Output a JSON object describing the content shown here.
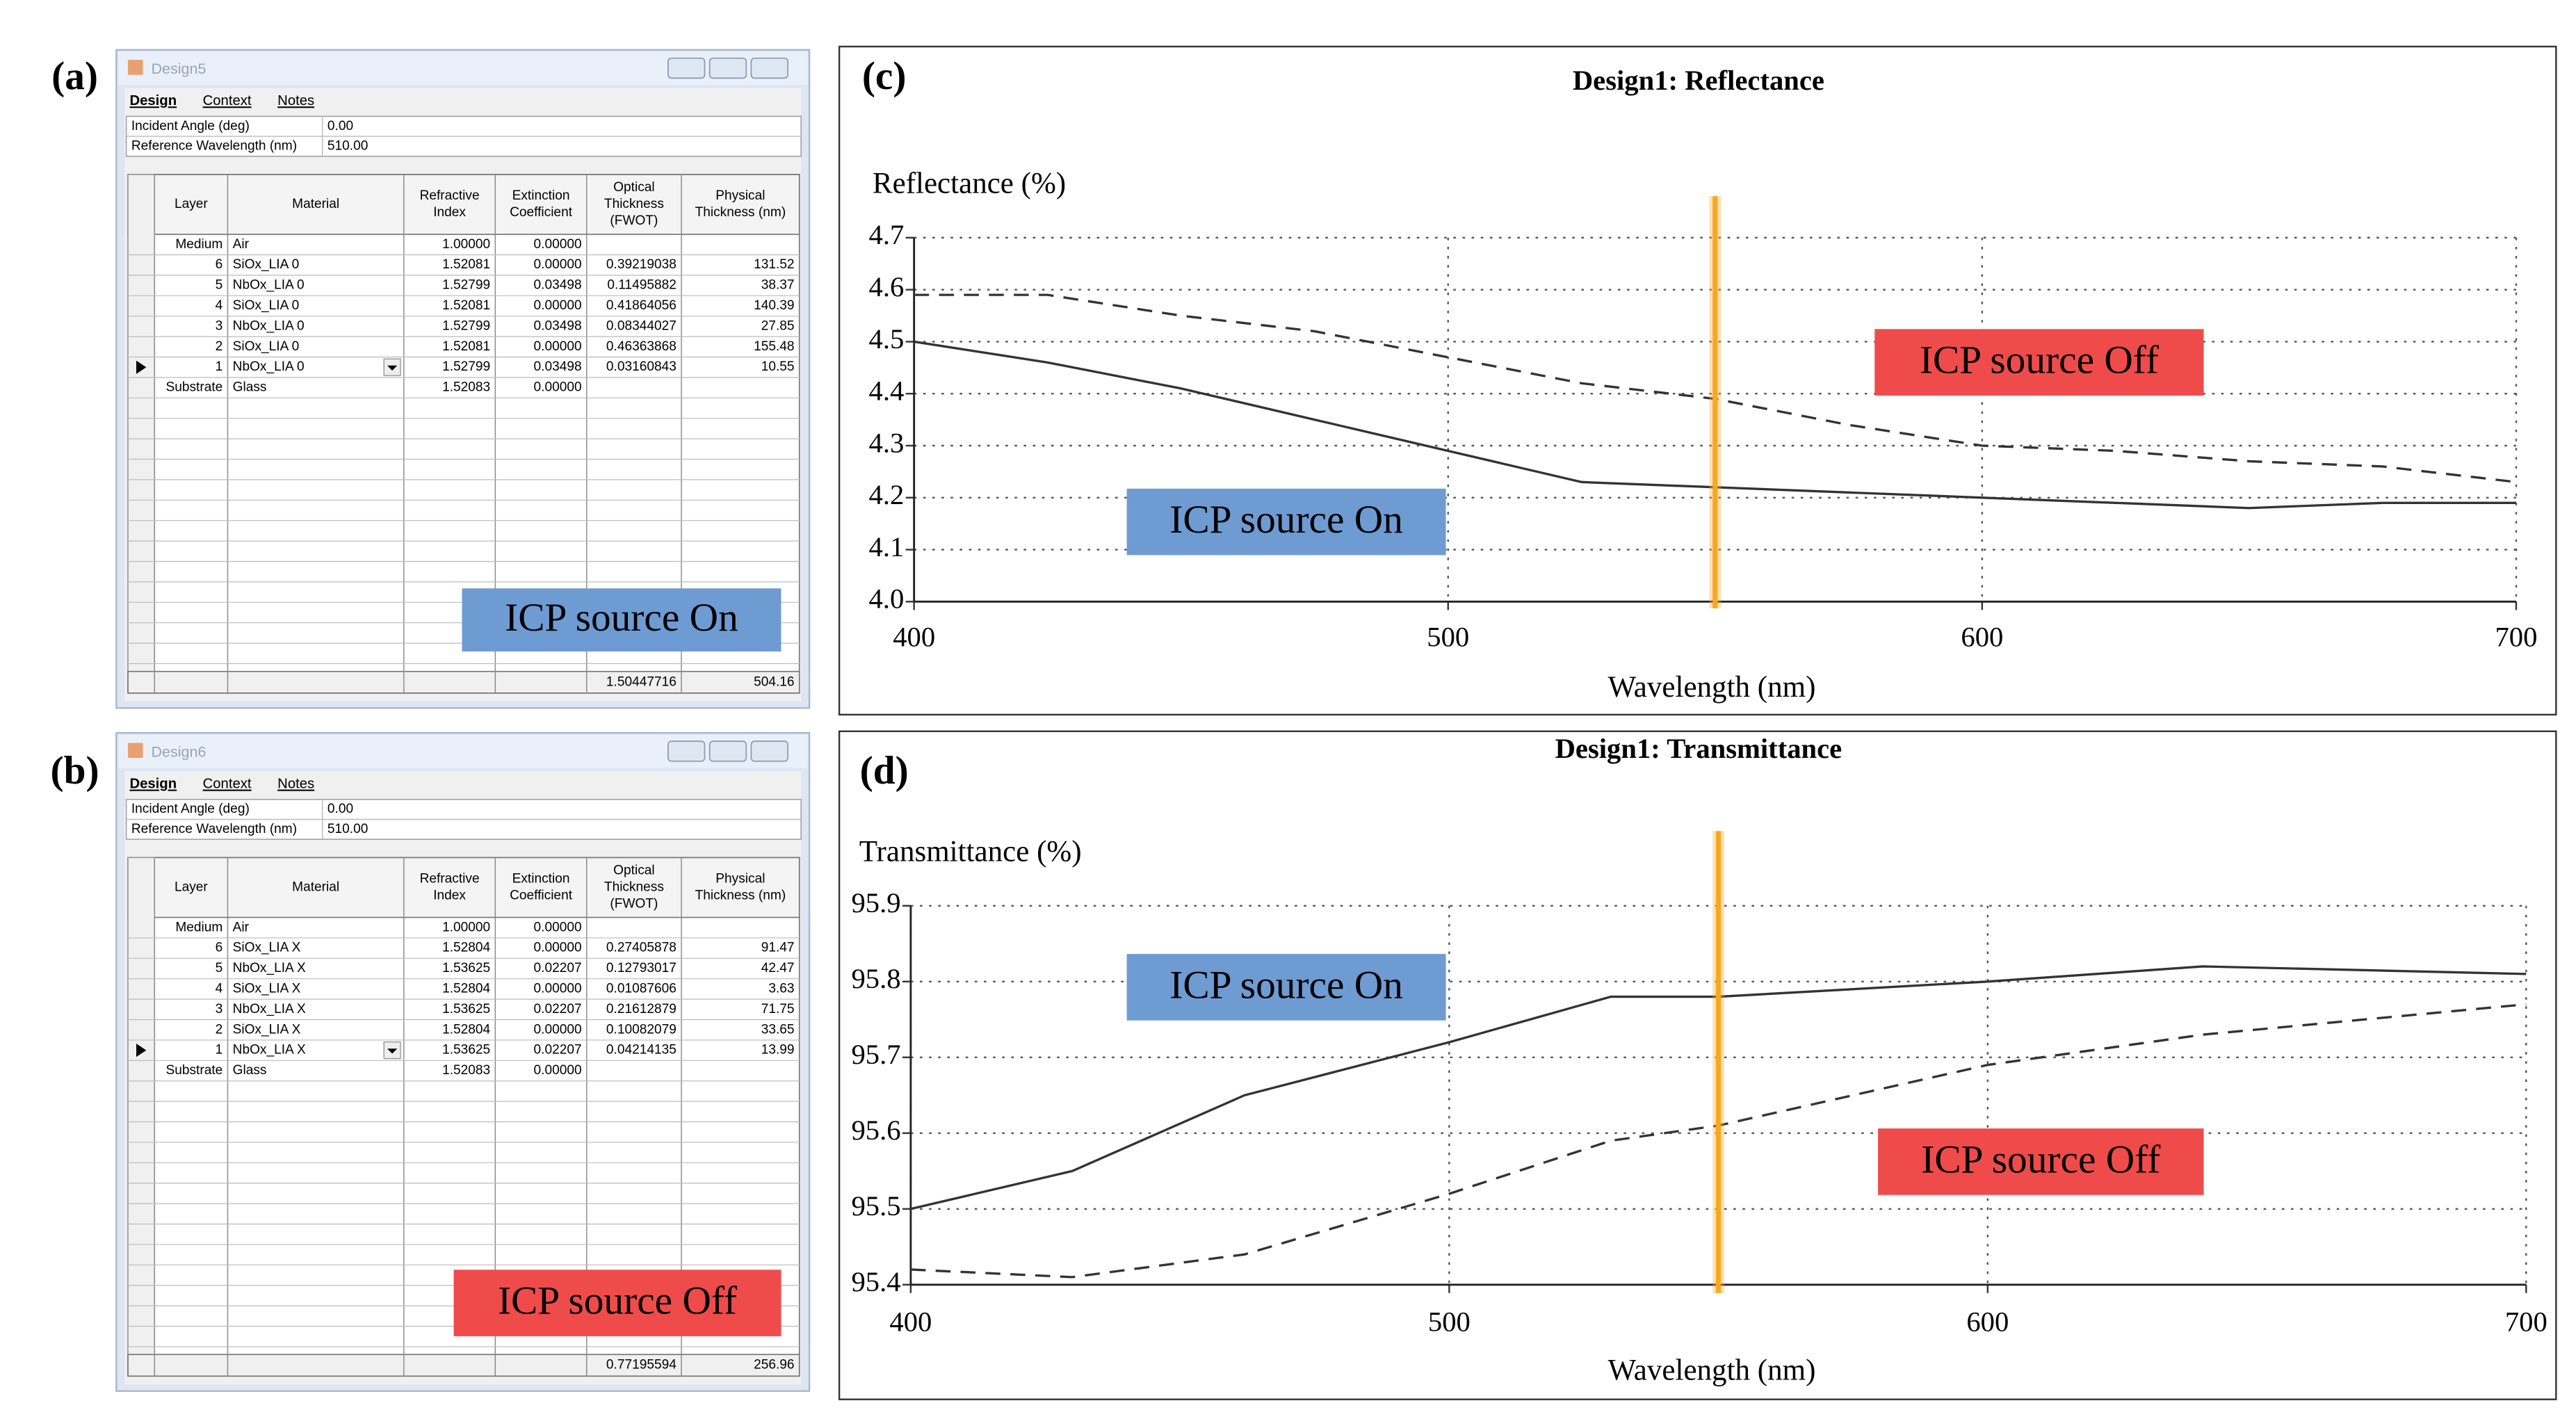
{
  "panel_labels": [
    "(a)",
    "(b)",
    "(c)",
    "(d)"
  ],
  "windows": [
    {
      "title": "Design5",
      "tabs": [
        "Design",
        "Context",
        "Notes"
      ],
      "fields": [
        [
          "Incident Angle (deg)",
          "0.00"
        ],
        [
          "Reference Wavelength (nm)",
          "510.00"
        ]
      ],
      "columns": [
        [
          "Layer"
        ],
        [
          "Material"
        ],
        [
          "Refractive",
          "Index"
        ],
        [
          "Extinction",
          "Coefficient"
        ],
        [
          "Optical",
          "Thickness",
          "(FWOT)"
        ],
        [
          "Physical",
          "Thickness (nm)"
        ]
      ],
      "rows": [
        [
          "Medium",
          "Air",
          "1.00000",
          "0.00000"
        ],
        [
          "6",
          "SiOx_LIA 0",
          "1.52081",
          "0.00000",
          "0.39219038",
          "131.52"
        ],
        [
          "5",
          "NbOx_LIA 0",
          "1.52799",
          "0.03498",
          "0.11495882",
          "38.37"
        ],
        [
          "4",
          "SiOx_LIA 0",
          "1.52081",
          "0.00000",
          "0.41864056",
          "140.39"
        ],
        [
          "3",
          "NbOx_LIA 0",
          "1.52799",
          "0.03498",
          "0.08344027",
          "27.85"
        ],
        [
          "2",
          "SiOx_LIA 0",
          "1.52081",
          "0.00000",
          "0.46363868",
          "155.48"
        ],
        [
          "1",
          "NbOx_LIA 0",
          "1.52799",
          "0.03498",
          "0.03160843",
          "10.55"
        ],
        [
          "Substrate",
          "Glass",
          "1.52083",
          "0.00000"
        ]
      ],
      "total": [
        "1.50447716",
        "504.16"
      ],
      "label": {
        "text": "ICP source On",
        "color": "#6f9bd3"
      }
    },
    {
      "title": "Design6",
      "tabs": [
        "Design",
        "Context",
        "Notes"
      ],
      "fields": [
        [
          "Incident Angle (deg)",
          "0.00"
        ],
        [
          "Reference Wavelength (nm)",
          "510.00"
        ]
      ],
      "columns": [
        [
          "Layer"
        ],
        [
          "Material"
        ],
        [
          "Refractive",
          "Index"
        ],
        [
          "Extinction",
          "Coefficient"
        ],
        [
          "Optical",
          "Thickness",
          "(FWOT)"
        ],
        [
          "Physical",
          "Thickness (nm)"
        ]
      ],
      "rows": [
        [
          "Medium",
          "Air",
          "1.00000",
          "0.00000"
        ],
        [
          "6",
          "SiOx_LIA X",
          "1.52804",
          "0.00000",
          "0.27405878",
          "91.47"
        ],
        [
          "5",
          "NbOx_LIA X",
          "1.53625",
          "0.02207",
          "0.12793017",
          "42.47"
        ],
        [
          "4",
          "SiOx_LIA X",
          "1.52804",
          "0.00000",
          "0.01087606",
          "3.63"
        ],
        [
          "3",
          "NbOx_LIA X",
          "1.53625",
          "0.02207",
          "0.21612879",
          "71.75"
        ],
        [
          "2",
          "SiOx_LIA X",
          "1.52804",
          "0.00000",
          "0.10082079",
          "33.65"
        ],
        [
          "1",
          "NbOx_LIA X",
          "1.53625",
          "0.02207",
          "0.04214135",
          "13.99"
        ],
        [
          "Substrate",
          "Glass",
          "1.52083",
          "0.00000"
        ]
      ],
      "total": [
        "0.77195594",
        "256.96"
      ],
      "label": {
        "text": "ICP source Off",
        "color": "#ef4b4b"
      }
    }
  ],
  "chart_data": [
    {
      "type": "line",
      "title": "Design1: Reflectance",
      "y_label": "Reflectance (%)",
      "x_label": "Wavelength (nm)",
      "x": [
        400,
        425,
        450,
        475,
        500,
        525,
        550,
        575,
        600,
        625,
        650,
        675,
        700
      ],
      "series": [
        {
          "name": "ICP source On",
          "color": "#333333",
          "dashed": false,
          "label_color": "#6f9bd3",
          "values": [
            4.5,
            4.46,
            4.41,
            4.35,
            4.29,
            4.23,
            4.22,
            4.21,
            4.2,
            4.19,
            4.18,
            4.19,
            4.19
          ]
        },
        {
          "name": "ICP source Off",
          "color": "#333333",
          "dashed": true,
          "label_color": "#ef4b4b",
          "values": [
            4.59,
            4.59,
            4.55,
            4.52,
            4.47,
            4.42,
            4.39,
            4.34,
            4.3,
            4.29,
            4.27,
            4.26,
            4.23
          ]
        }
      ],
      "xlim": [
        400,
        700
      ],
      "xticks": [
        400,
        500,
        600,
        700
      ],
      "ylim": [
        4.0,
        4.7
      ],
      "yticks": [
        {
          "value": 4,
          "label": "4.0"
        },
        4.1,
        4.2,
        4.3,
        4.4,
        4.5,
        4.6,
        4.7
      ],
      "grid": true,
      "vline": {
        "x": 550,
        "color": "#f7a823"
      }
    },
    {
      "type": "line",
      "title": "Design1: Transmittance",
      "y_label": "Transmittance (%)",
      "x_label": "Wavelength (nm)",
      "x": [
        400,
        430,
        462,
        500,
        530,
        550,
        600,
        640,
        700
      ],
      "series": [
        {
          "name": "ICP source On",
          "color": "#333333",
          "dashed": false,
          "label_color": "#6f9bd3",
          "values": [
            95.5,
            95.55,
            95.65,
            95.72,
            95.78,
            95.78,
            95.8,
            95.82,
            95.81
          ]
        },
        {
          "name": "ICP source Off",
          "color": "#333333",
          "dashed": true,
          "label_color": "#ef4b4b",
          "values": [
            95.42,
            95.41,
            95.44,
            95.52,
            95.59,
            95.61,
            95.69,
            95.73,
            95.77
          ]
        }
      ],
      "xlim": [
        400,
        700
      ],
      "xticks": [
        400,
        500,
        600,
        700
      ],
      "ylim": [
        95.4,
        95.9
      ],
      "yticks": [
        95.4,
        95.5,
        95.6,
        95.7,
        95.8,
        95.9
      ],
      "grid": true,
      "vline": {
        "x": 550,
        "color": "#f7a823"
      }
    }
  ]
}
